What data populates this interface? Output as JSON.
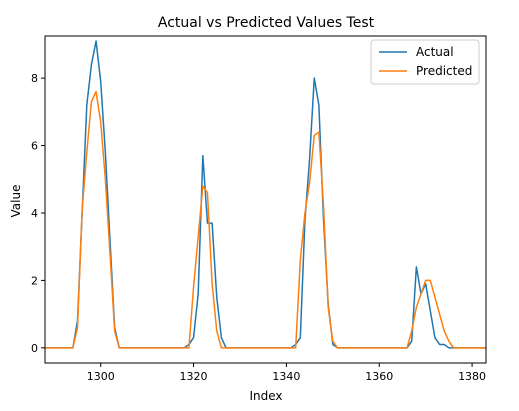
{
  "chart_data": {
    "type": "line",
    "title": "Actual vs Predicted Values Test",
    "xlabel": "Index",
    "ylabel": "Value",
    "xlim": [
      1288,
      1383
    ],
    "ylim": [
      -0.45,
      9.25
    ],
    "xticks": [
      1300,
      1320,
      1340,
      1360,
      1380
    ],
    "yticks": [
      0,
      2,
      4,
      6,
      8
    ],
    "grid": false,
    "legend_position": "upper right",
    "x": [
      1288,
      1289,
      1290,
      1291,
      1292,
      1293,
      1294,
      1295,
      1296,
      1297,
      1298,
      1299,
      1300,
      1301,
      1302,
      1303,
      1304,
      1305,
      1306,
      1307,
      1308,
      1309,
      1310,
      1311,
      1312,
      1313,
      1314,
      1315,
      1316,
      1317,
      1318,
      1319,
      1320,
      1321,
      1322,
      1323,
      1324,
      1325,
      1326,
      1327,
      1328,
      1329,
      1330,
      1331,
      1332,
      1333,
      1334,
      1335,
      1336,
      1337,
      1338,
      1339,
      1340,
      1341,
      1342,
      1343,
      1344,
      1345,
      1346,
      1347,
      1348,
      1349,
      1350,
      1351,
      1352,
      1353,
      1354,
      1355,
      1356,
      1357,
      1358,
      1359,
      1360,
      1361,
      1362,
      1363,
      1364,
      1365,
      1366,
      1367,
      1368,
      1369,
      1370,
      1371,
      1372,
      1373,
      1374,
      1375,
      1376,
      1377,
      1378,
      1379,
      1380,
      1381,
      1382,
      1383
    ],
    "series": [
      {
        "name": "Actual",
        "color": "#1f77b4",
        "values": [
          0,
          0,
          0,
          0,
          0,
          0,
          0,
          0.8,
          4,
          7.2,
          8.4,
          9.1,
          7.9,
          5.8,
          3.2,
          0.6,
          0,
          0,
          0,
          0,
          0,
          0,
          0,
          0,
          0,
          0,
          0,
          0,
          0,
          0,
          0,
          0.1,
          0.3,
          1.6,
          5.7,
          3.7,
          3.7,
          1.5,
          0.3,
          0,
          0,
          0,
          0,
          0,
          0,
          0,
          0,
          0,
          0,
          0,
          0,
          0,
          0,
          0,
          0.1,
          0.3,
          3.8,
          5.6,
          8.0,
          7.2,
          3.8,
          1.3,
          0.1,
          0,
          0,
          0,
          0,
          0,
          0,
          0,
          0,
          0,
          0,
          0,
          0,
          0,
          0,
          0,
          0,
          0.2,
          2.4,
          1.6,
          1.9,
          1.1,
          0.3,
          0.1,
          0.1,
          0,
          0,
          0,
          0,
          0,
          0,
          0,
          0,
          0
        ]
      },
      {
        "name": "Predicted",
        "color": "#ff7f0e",
        "values": [
          0,
          0,
          0,
          0,
          0,
          0,
          0,
          0.6,
          4.1,
          5.8,
          7.3,
          7.6,
          6.7,
          5.0,
          2.8,
          0.5,
          0,
          0,
          0,
          0,
          0,
          0,
          0,
          0,
          0,
          0,
          0,
          0,
          0,
          0,
          0,
          0,
          1.8,
          3.3,
          4.8,
          4.6,
          1.9,
          0.5,
          0,
          0,
          0,
          0,
          0,
          0,
          0,
          0,
          0,
          0,
          0,
          0,
          0,
          0,
          0,
          0,
          0,
          2.6,
          4.0,
          4.9,
          6.3,
          6.4,
          4.2,
          1.2,
          0.2,
          0,
          0,
          0,
          0,
          0,
          0,
          0,
          0,
          0,
          0,
          0,
          0,
          0,
          0,
          0,
          0,
          0.5,
          1.2,
          1.6,
          2.0,
          2.0,
          1.5,
          1.0,
          0.5,
          0.2,
          0,
          0,
          0,
          0,
          0,
          0,
          0,
          0
        ]
      }
    ]
  }
}
